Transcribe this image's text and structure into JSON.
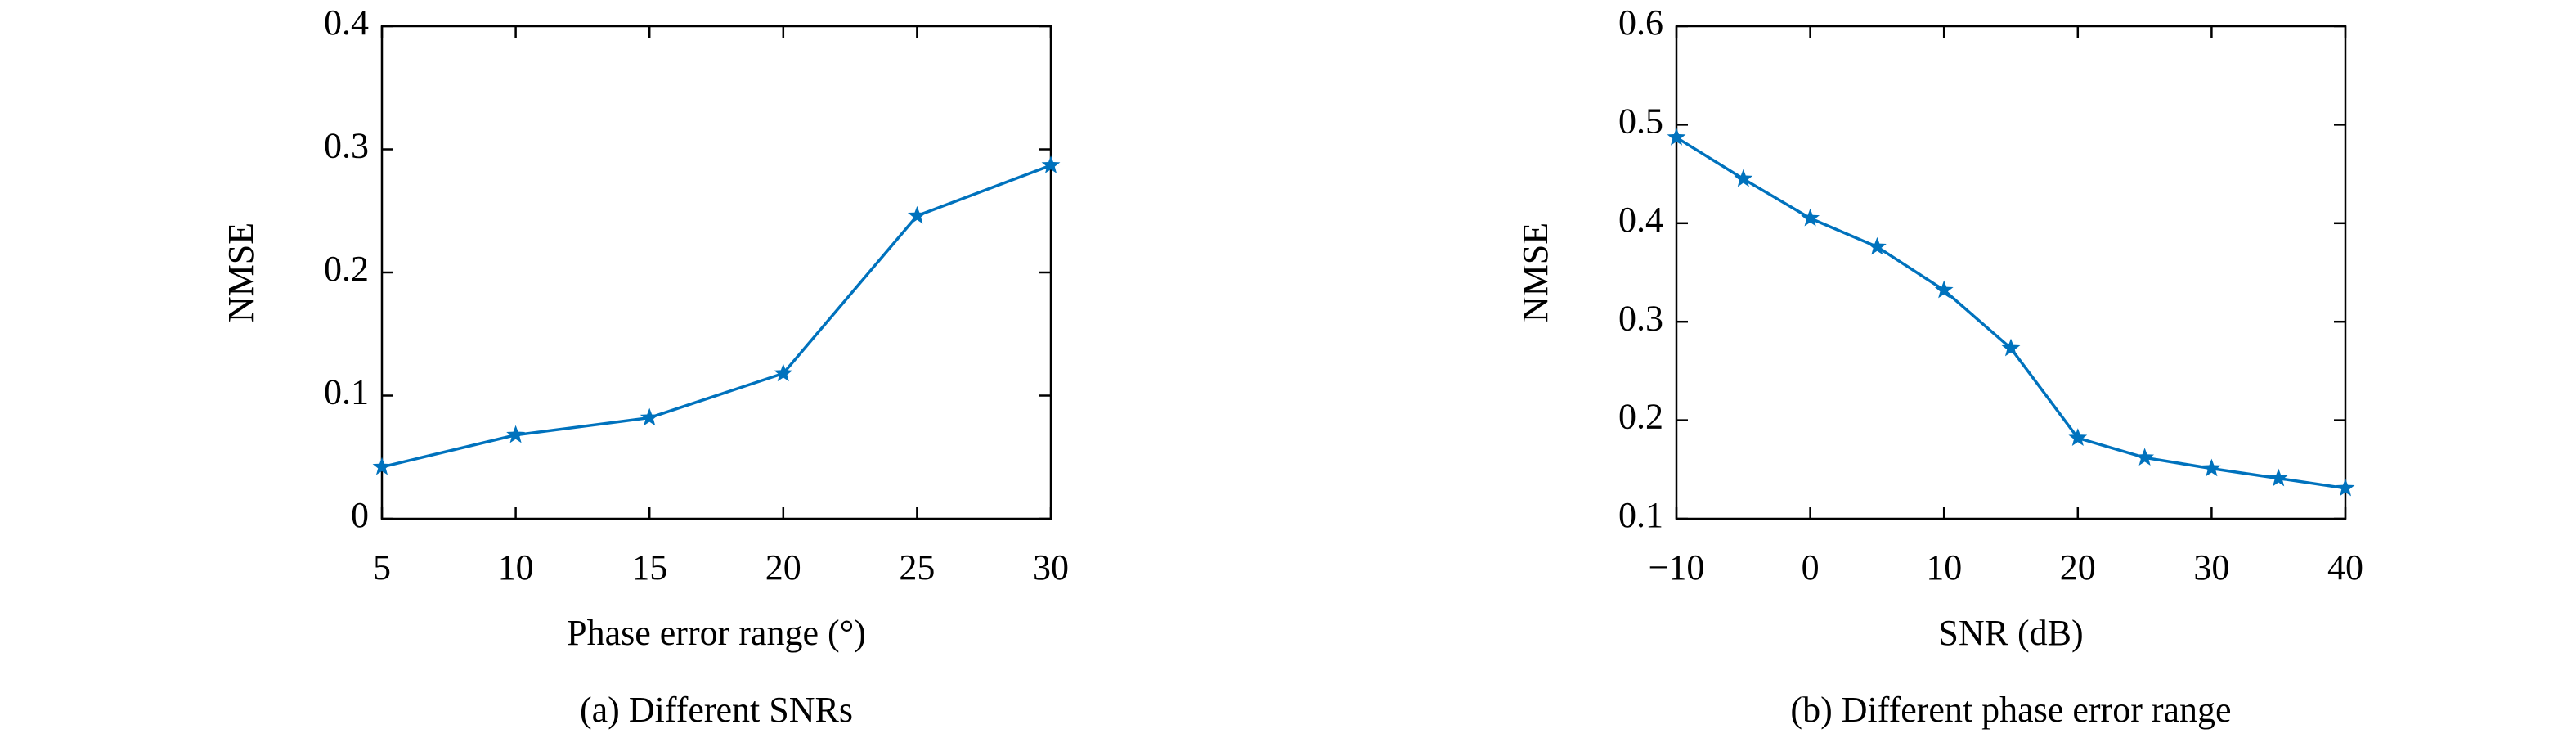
{
  "chart_data": [
    {
      "type": "line",
      "caption": "(a) Different SNRs",
      "x_label": "Phase error range (°)",
      "y_label": "NMSE",
      "x": [
        5,
        10,
        15,
        20,
        25,
        30
      ],
      "series": [
        {
          "name": "NMSE",
          "color": "#0072bd",
          "values": [
            0.042,
            0.068,
            0.082,
            0.118,
            0.246,
            0.287
          ]
        }
      ],
      "xlim": [
        5,
        30
      ],
      "xticks": [
        5,
        10,
        15,
        20,
        25,
        30
      ],
      "ylim": [
        0,
        0.4
      ],
      "yticks": [
        0,
        0.1,
        0.2,
        0.3,
        0.4
      ]
    },
    {
      "type": "line",
      "caption": "(b) Different phase error range",
      "x_label": "SNR (dB)",
      "y_label": "NMSE",
      "x": [
        -10,
        -5,
        0,
        5,
        10,
        15,
        20,
        25,
        30,
        35,
        40
      ],
      "series": [
        {
          "name": "NMSE",
          "color": "#0072bd",
          "values": [
            0.487,
            0.445,
            0.405,
            0.376,
            0.332,
            0.273,
            0.182,
            0.162,
            0.151,
            0.141,
            0.131
          ]
        }
      ],
      "xlim": [
        -10,
        40
      ],
      "xticks": [
        {
          "value": -10,
          "label": "−10"
        },
        0,
        10,
        20,
        30,
        40
      ],
      "ylim": [
        0.1,
        0.6
      ],
      "yticks": [
        0.1,
        0.2,
        0.3,
        0.4,
        0.5,
        0.6
      ]
    }
  ]
}
